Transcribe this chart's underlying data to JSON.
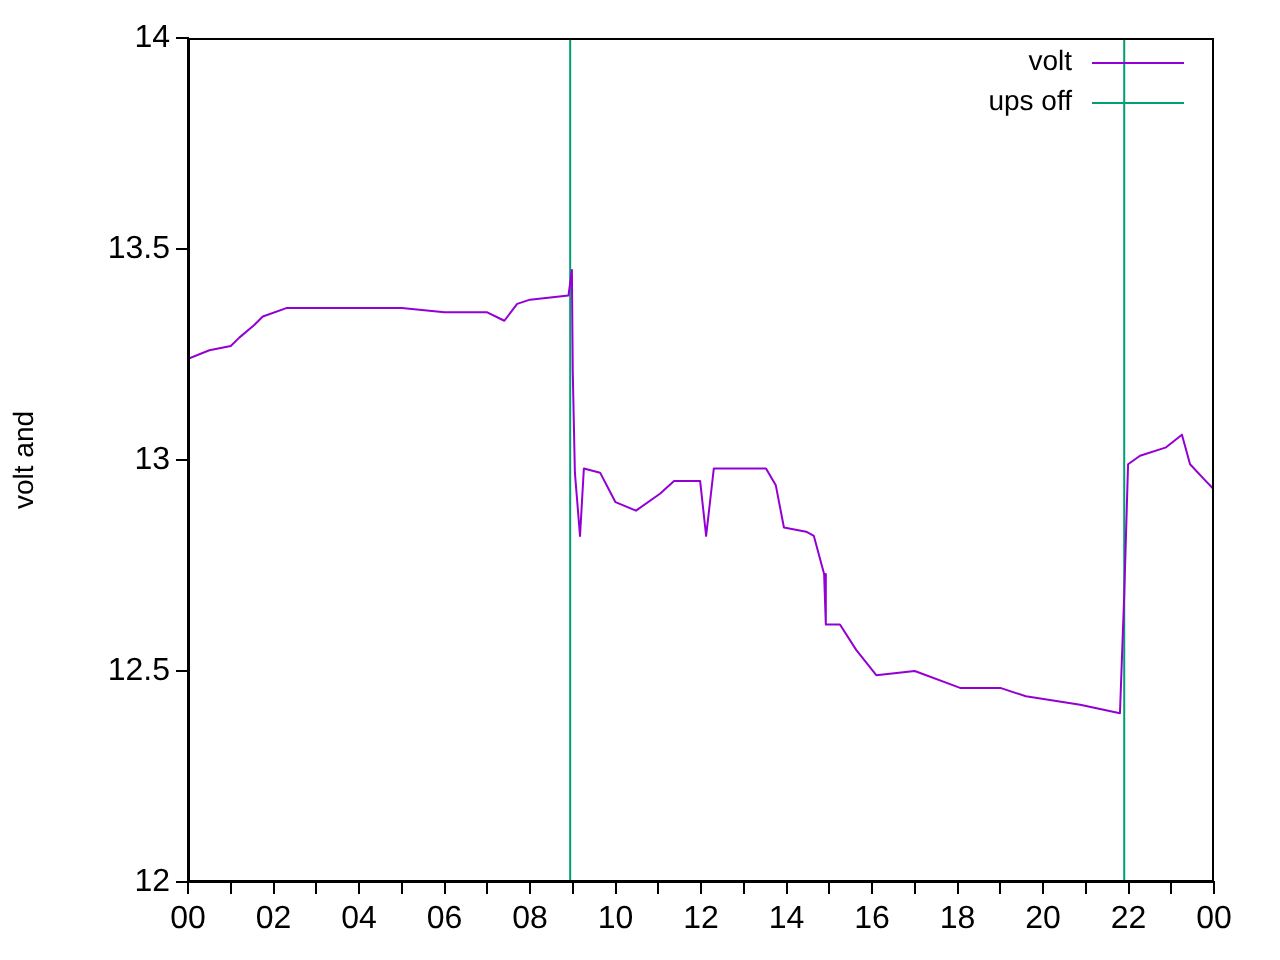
{
  "chart_data": {
    "type": "line",
    "ylabel": "volt and",
    "legend": "top right",
    "grid": false,
    "xlim": [
      0,
      24
    ],
    "ylim": [
      12,
      14
    ],
    "xticks": [
      {
        "value": 0,
        "label": "00"
      },
      {
        "value": 1,
        "label": null
      },
      {
        "value": 2,
        "label": "02"
      },
      {
        "value": 3,
        "label": null
      },
      {
        "value": 4,
        "label": "04"
      },
      {
        "value": 5,
        "label": null
      },
      {
        "value": 6,
        "label": "06"
      },
      {
        "value": 7,
        "label": null
      },
      {
        "value": 8,
        "label": "08"
      },
      {
        "value": 9,
        "label": null
      },
      {
        "value": 10,
        "label": "10"
      },
      {
        "value": 11,
        "label": null
      },
      {
        "value": 12,
        "label": "12"
      },
      {
        "value": 13,
        "label": null
      },
      {
        "value": 14,
        "label": "14"
      },
      {
        "value": 15,
        "label": null
      },
      {
        "value": 16,
        "label": "16"
      },
      {
        "value": 17,
        "label": null
      },
      {
        "value": 18,
        "label": "18"
      },
      {
        "value": 19,
        "label": null
      },
      {
        "value": 20,
        "label": "20"
      },
      {
        "value": 21,
        "label": null
      },
      {
        "value": 22,
        "label": "22"
      },
      {
        "value": 23,
        "label": null
      },
      {
        "value": 24,
        "label": "00"
      }
    ],
    "yticks": [
      12,
      12.5,
      13,
      13.5,
      14
    ],
    "series": [
      {
        "name": "volt",
        "color": "#9400d3",
        "x": [
          0,
          0.5,
          1.0,
          1.2,
          1.55,
          1.75,
          2.3,
          3.1,
          4.0,
          5.0,
          6.0,
          7.0,
          7.4,
          7.7,
          8.0,
          8.9,
          8.98,
          9.0,
          9.05,
          9.17,
          9.26,
          9.64,
          10.0,
          10.48,
          11.04,
          11.37,
          11.98,
          12.12,
          12.3,
          12.58,
          13.52,
          13.75,
          13.94,
          14.46,
          14.64,
          14.88,
          14.92,
          15.25,
          15.63,
          16.1,
          17.0,
          18.06,
          19.0,
          19.6,
          20.87,
          21.8,
          21.9,
          21.99,
          22.27,
          22.88,
          23.25,
          23.44,
          23.81,
          24
        ],
        "values": [
          13.24,
          13.26,
          13.27,
          13.29,
          13.32,
          13.34,
          13.36,
          13.36,
          13.36,
          13.36,
          13.35,
          13.35,
          13.33,
          13.37,
          13.38,
          13.39,
          13.45,
          13.21,
          12.97,
          12.82,
          12.98,
          12.97,
          12.9,
          12.88,
          12.92,
          12.95,
          12.95,
          12.82,
          12.98,
          12.98,
          12.98,
          12.94,
          12.84,
          12.83,
          12.82,
          12.73,
          12.61,
          12.61,
          12.55,
          12.49,
          12.5,
          12.46,
          12.46,
          12.44,
          12.42,
          12.4,
          12.68,
          12.99,
          13.01,
          13.03,
          13.06,
          12.99,
          12.95,
          12.93
        ]
      },
      {
        "name": "ups off",
        "color": "#009e73",
        "x": [
          8.94,
          8.94,
          null,
          21.9,
          21.9
        ],
        "values": [
          12,
          14,
          null,
          12,
          14
        ]
      }
    ]
  }
}
